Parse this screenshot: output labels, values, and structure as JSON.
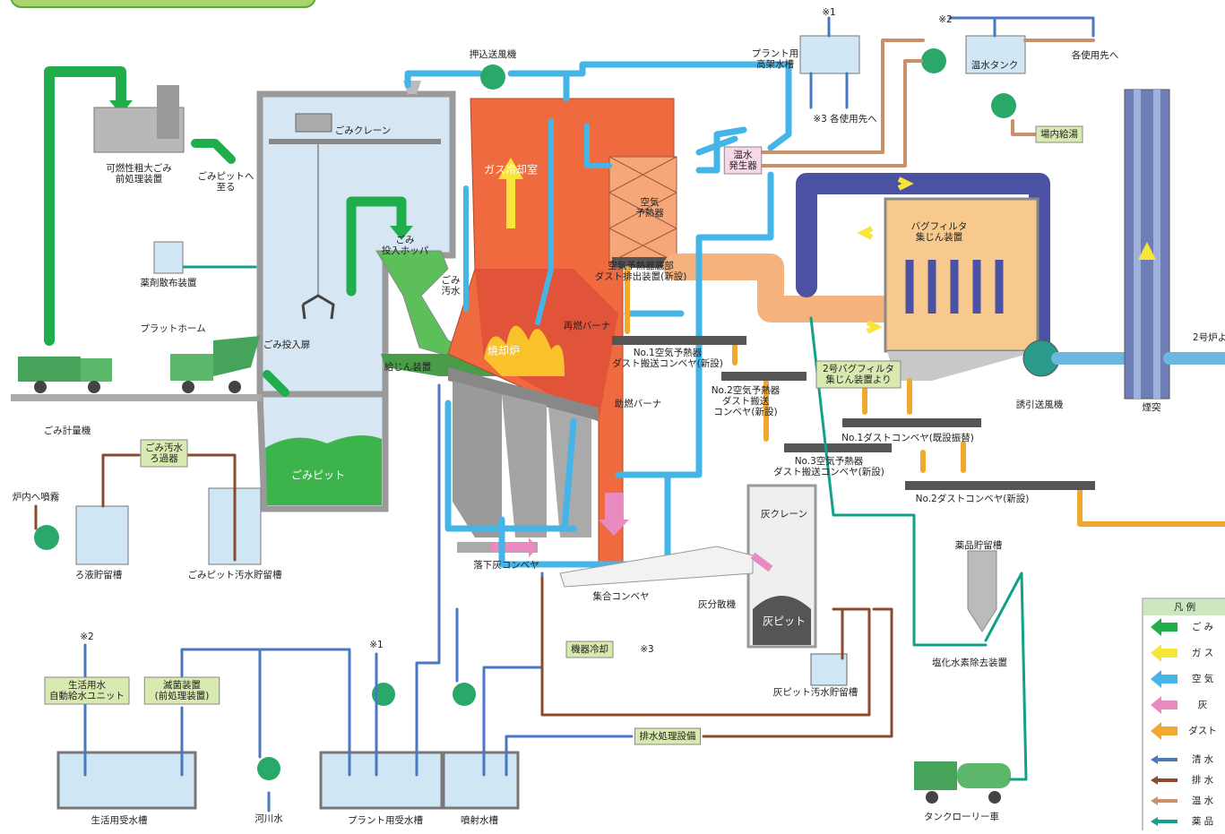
{
  "labels": [
    [
      "可燃性粗大ごみ",
      "前処理装置"
    ],
    [
      "ごみピットへ",
      "至る"
    ],
    [
      "薬剤散布装置"
    ],
    [
      "プラットホーム"
    ],
    [
      "ごみ投入扉"
    ],
    [
      "ごみ計量機"
    ],
    [
      "ごみクレーン"
    ],
    [
      "ごみ",
      "投入ホッパ"
    ],
    [
      "ごみ",
      "汚水"
    ],
    [
      "給じん装置"
    ],
    [
      "ごみピット"
    ],
    [
      "ごみ汚水",
      "ろ過器"
    ],
    [
      "炉内へ噴霧"
    ],
    [
      "ろ液貯留槽"
    ],
    [
      "ごみピット汚水貯留槽"
    ],
    [
      "押込送風機"
    ],
    [
      "ガス冷却室"
    ],
    [
      "焼却炉"
    ],
    [
      "再燃バーナ"
    ],
    [
      "助燃バーナ"
    ],
    [
      "落下灰コンベヤ"
    ],
    [
      "集合コンベヤ"
    ],
    [
      "灰分散機"
    ],
    [
      "灰クレーン"
    ],
    [
      "灰ピット"
    ],
    [
      "灰ピット汚水貯留槽"
    ],
    [
      "空気",
      "予熱器"
    ],
    [
      "空気予熱器底部",
      "ダスト排出装置(新設)"
    ],
    [
      "No.1空気予熱器",
      "ダスト搬送コンベヤ(新設)"
    ],
    [
      "No.2空気予熱器",
      "ダスト搬送",
      "コンベヤ(新設)"
    ],
    [
      "No.3空気予熱器",
      "ダスト搬送コンベヤ(新設)"
    ],
    [
      "2号バグフィルタ",
      "集じん装置より"
    ],
    [
      "No.1ダストコンベヤ(既設振替)"
    ],
    [
      "No.2ダストコンベヤ(新設)"
    ],
    [
      "バグフィルタ",
      "集じん装置"
    ],
    [
      "誘引送風機"
    ],
    [
      "煙突"
    ],
    [
      "2号炉よ"
    ],
    [
      "温水",
      "発生器"
    ],
    [
      "プラント用",
      "高架水槽"
    ],
    [
      "※1"
    ],
    [
      "※3 各使用先へ"
    ],
    [
      "※2"
    ],
    [
      "温水タンク"
    ],
    [
      "各使用先へ"
    ],
    [
      "場内給湯"
    ],
    [
      "薬品貯留槽"
    ],
    [
      "塩化水素除去装置"
    ],
    [
      "タンクローリー車"
    ],
    [
      "機器冷却"
    ],
    [
      "※3"
    ],
    [
      "排水処理設備"
    ],
    [
      "※2"
    ],
    [
      "生活用水",
      "自動給水ユニット"
    ],
    [
      "滅菌装置",
      "(前処理装置)"
    ],
    [
      "※1"
    ],
    [
      "生活用受水槽"
    ],
    [
      "河川水"
    ],
    [
      "プラント用受水槽"
    ],
    [
      "噴射水槽"
    ]
  ],
  "legend": {
    "title": "凡 例",
    "items": [
      {
        "label": "ご み",
        "color": "#1fae4b"
      },
      {
        "label": "ガ ス",
        "color": "#f5e63a"
      },
      {
        "label": "空 気",
        "color": "#45b4e6"
      },
      {
        "label": "灰",
        "color": "#e98bc0"
      },
      {
        "label": "ダスト",
        "color": "#f0a82e"
      },
      {
        "label": "清 水",
        "color": "#4a78c0"
      },
      {
        "label": "排 水",
        "color": "#8b4a2b"
      },
      {
        "label": "温 水",
        "color": "#c9906a"
      },
      {
        "label": "薬 品",
        "color": "#12a088"
      }
    ]
  }
}
